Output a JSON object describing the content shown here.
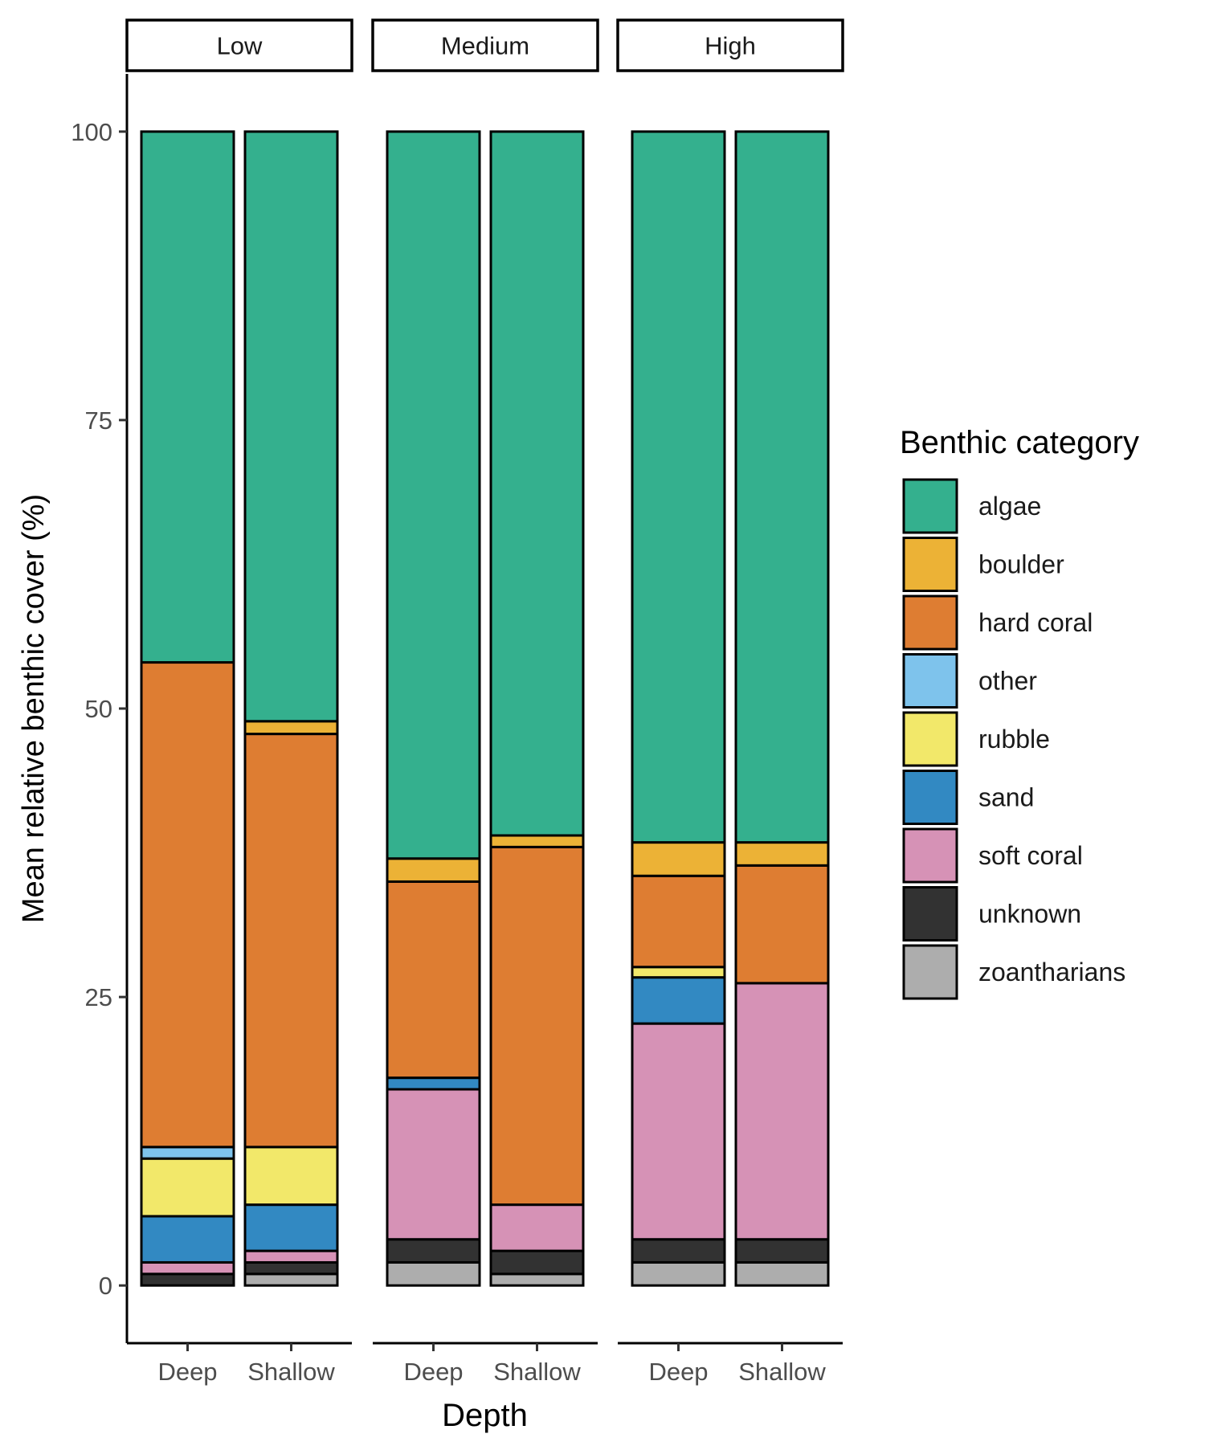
{
  "chart_data": {
    "type": "bar",
    "stacked": true,
    "facet_label": "",
    "xlabel": "Depth",
    "ylabel": "Mean relative benthic cover (%)",
    "ylim": [
      -5,
      105
    ],
    "yticks": [
      0,
      25,
      50,
      75,
      100
    ],
    "grid": false,
    "legend": {
      "title": "Benthic category",
      "position": "right"
    },
    "categories": [
      "Deep",
      "Shallow"
    ],
    "categories_order": [
      "algae",
      "boulder",
      "hard coral",
      "other",
      "rubble",
      "sand",
      "soft coral",
      "unknown",
      "zoantharians"
    ],
    "colors": {
      "algae": "#34B08E",
      "boulder": "#ECB236",
      "hard coral": "#DE7D32",
      "other": "#7EC3EC",
      "rubble": "#F2E86A",
      "sand": "#3289C2",
      "soft coral": "#D692B6",
      "unknown": "#323232",
      "zoantharians": "#ADADAD"
    },
    "panels": [
      {
        "label": "Low",
        "bars": [
          {
            "x": "Deep",
            "values": {
              "zoantharians": 0,
              "unknown": 1,
              "soft coral": 1,
              "sand": 4,
              "rubble": 5,
              "other": 1,
              "hard coral": 42,
              "boulder": 0,
              "algae": 46
            }
          },
          {
            "x": "Shallow",
            "values": {
              "zoantharians": 1,
              "unknown": 1,
              "soft coral": 1,
              "sand": 4,
              "rubble": 5,
              "other": 0,
              "hard coral": 35.8,
              "boulder": 1.1,
              "algae": 51.1
            }
          }
        ]
      },
      {
        "label": "Medium",
        "bars": [
          {
            "x": "Deep",
            "values": {
              "zoantharians": 2,
              "unknown": 2,
              "soft coral": 13,
              "sand": 1,
              "rubble": 0,
              "other": 0,
              "hard coral": 17,
              "boulder": 2,
              "algae": 63
            }
          },
          {
            "x": "Shallow",
            "values": {
              "zoantharians": 1,
              "unknown": 2,
              "soft coral": 4,
              "sand": 0,
              "rubble": 0,
              "other": 0,
              "hard coral": 31,
              "boulder": 1,
              "algae": 61
            }
          }
        ]
      },
      {
        "label": "High",
        "bars": [
          {
            "x": "Deep",
            "values": {
              "zoantharians": 2,
              "unknown": 2,
              "soft coral": 18.7,
              "sand": 4,
              "rubble": 0.9,
              "other": 0,
              "hard coral": 7.9,
              "boulder": 2.9,
              "algae": 61.6
            }
          },
          {
            "x": "Shallow",
            "values": {
              "zoantharians": 2,
              "unknown": 2,
              "soft coral": 22.2,
              "sand": 0,
              "rubble": 0,
              "other": 0,
              "hard coral": 10.2,
              "boulder": 2,
              "algae": 61.6
            }
          }
        ]
      }
    ]
  }
}
